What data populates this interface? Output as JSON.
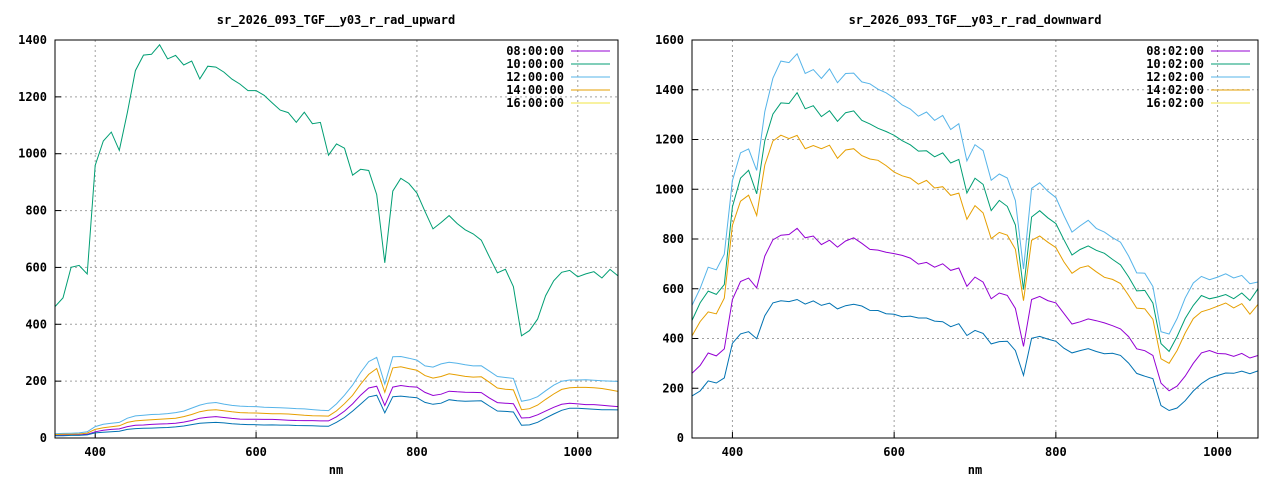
{
  "chart_data": [
    {
      "type": "line",
      "title": "sr_2026_093_TGF__y03_r_rad_upward",
      "xlabel": "nm",
      "ylabel": "",
      "xlim": [
        350,
        1050
      ],
      "ylim": [
        0,
        1400
      ],
      "xticks": [
        400,
        600,
        800,
        1000
      ],
      "yticks": [
        0,
        200,
        400,
        600,
        800,
        1000,
        1200,
        1400
      ],
      "grid": true,
      "legend_position": "top-right",
      "x_start": 350,
      "x_step": 10,
      "series": [
        {
          "name": "08:00:00",
          "color": "#9400d3",
          "legend_color": "#9400d3",
          "values": [
            10,
            10,
            11,
            11,
            13,
            22,
            27,
            30,
            32,
            40,
            45,
            46,
            48,
            49,
            50,
            52,
            56,
            62,
            70,
            73,
            75,
            72,
            69,
            67,
            66,
            66,
            65,
            65,
            64,
            63,
            62,
            61,
            61,
            60,
            60,
            75,
            95,
            120,
            150,
            175,
            182,
            115,
            180,
            185,
            180,
            178,
            160,
            150,
            155,
            165,
            162,
            160,
            160,
            160,
            142,
            125,
            122,
            120,
            70,
            72,
            82,
            95,
            108,
            118,
            122,
            120,
            118,
            118,
            115,
            112,
            110
          ]
        },
        {
          "name": "10:00:00",
          "color": "#009e73",
          "legend_color": "#009e73",
          "values": [
            460,
            490,
            600,
            610,
            580,
            960,
            1040,
            1070,
            1010,
            1150,
            1300,
            1350,
            1345,
            1375,
            1330,
            1350,
            1320,
            1330,
            1260,
            1300,
            1300,
            1290,
            1270,
            1250,
            1220,
            1215,
            1200,
            1180,
            1160,
            1150,
            1110,
            1140,
            1100,
            1110,
            1000,
            1040,
            1020,
            920,
            940,
            940,
            860,
            620,
            870,
            910,
            890,
            860,
            800,
            740,
            760,
            780,
            750,
            730,
            720,
            700,
            640,
            580,
            590,
            530,
            360,
            380,
            420,
            500,
            550,
            580,
            590,
            570,
            580,
            585,
            560,
            590,
            570
          ]
        },
        {
          "name": "12:00:00",
          "color": "#56b4e9",
          "legend_color": "#56b4e9",
          "values": [
            15,
            16,
            17,
            18,
            22,
            40,
            48,
            52,
            55,
            70,
            78,
            80,
            82,
            83,
            86,
            90,
            95,
            105,
            115,
            122,
            125,
            120,
            115,
            112,
            110,
            110,
            108,
            108,
            107,
            105,
            103,
            102,
            100,
            98,
            97,
            120,
            150,
            185,
            230,
            270,
            285,
            190,
            285,
            285,
            280,
            275,
            255,
            250,
            260,
            265,
            262,
            258,
            255,
            255,
            235,
            215,
            212,
            210,
            130,
            135,
            145,
            165,
            185,
            200,
            205,
            205,
            205,
            202,
            200,
            200,
            200
          ]
        },
        {
          "name": "14:00:00",
          "color": "#e69f00",
          "legend_color": "#e69f00",
          "values": [
            12,
            13,
            13,
            14,
            17,
            30,
            36,
            40,
            43,
            55,
            60,
            62,
            64,
            66,
            68,
            70,
            75,
            82,
            92,
            98,
            100,
            96,
            92,
            89,
            88,
            88,
            87,
            86,
            85,
            84,
            82,
            80,
            79,
            78,
            77,
            95,
            120,
            150,
            190,
            225,
            245,
            160,
            245,
            250,
            245,
            240,
            220,
            210,
            215,
            225,
            222,
            218,
            215,
            215,
            195,
            175,
            172,
            170,
            100,
            103,
            115,
            135,
            155,
            172,
            178,
            178,
            177,
            176,
            174,
            170,
            165
          ]
        },
        {
          "name": "16:00:00",
          "color": "#0072b2",
          "legend_color": "#f0e442",
          "values": [
            8,
            8,
            9,
            9,
            11,
            18,
            20,
            22,
            24,
            30,
            33,
            34,
            35,
            36,
            37,
            39,
            42,
            47,
            52,
            54,
            55,
            53,
            50,
            48,
            47,
            47,
            46,
            46,
            45,
            45,
            44,
            44,
            43,
            42,
            41,
            55,
            72,
            95,
            120,
            145,
            150,
            88,
            145,
            148,
            145,
            142,
            125,
            118,
            122,
            135,
            132,
            130,
            130,
            130,
            112,
            95,
            94,
            92,
            45,
            46,
            55,
            70,
            85,
            98,
            105,
            104,
            102,
            101,
            100,
            100,
            99
          ]
        }
      ]
    },
    {
      "type": "line",
      "title": "sr_2026_093_TGF__y03_r_rad_downward",
      "xlabel": "nm",
      "ylabel": "",
      "xlim": [
        350,
        1050
      ],
      "ylim": [
        0,
        1600
      ],
      "xticks": [
        400,
        600,
        800,
        1000
      ],
      "yticks": [
        0,
        200,
        400,
        600,
        800,
        1000,
        1200,
        1400,
        1600
      ],
      "grid": true,
      "legend_position": "top-right",
      "x_start": 350,
      "x_step": 10,
      "series": [
        {
          "name": "08:02:00",
          "color": "#9400d3",
          "legend_color": "#9400d3",
          "values": [
            260,
            290,
            340,
            330,
            360,
            560,
            630,
            640,
            600,
            730,
            800,
            820,
            820,
            840,
            800,
            810,
            780,
            800,
            770,
            790,
            800,
            780,
            760,
            760,
            750,
            740,
            730,
            720,
            700,
            710,
            690,
            700,
            670,
            680,
            610,
            650,
            630,
            560,
            580,
            570,
            520,
            370,
            560,
            570,
            550,
            540,
            500,
            460,
            470,
            480,
            470,
            460,
            450,
            440,
            410,
            360,
            350,
            330,
            220,
            190,
            210,
            250,
            300,
            340,
            350,
            340,
            340,
            330,
            340,
            320,
            330
          ]
        },
        {
          "name": "10:02:00",
          "color": "#009e73",
          "legend_color": "#009e73",
          "values": [
            470,
            540,
            590,
            580,
            620,
            930,
            1040,
            1070,
            980,
            1200,
            1310,
            1350,
            1340,
            1380,
            1320,
            1340,
            1300,
            1320,
            1270,
            1300,
            1310,
            1280,
            1270,
            1250,
            1230,
            1210,
            1190,
            1180,
            1160,
            1160,
            1130,
            1140,
            1100,
            1120,
            990,
            1050,
            1020,
            910,
            950,
            930,
            860,
            600,
            890,
            910,
            880,
            860,
            800,
            740,
            760,
            770,
            750,
            740,
            720,
            700,
            650,
            590,
            590,
            540,
            380,
            350,
            410,
            480,
            530,
            570,
            560,
            570,
            580,
            560,
            580,
            550,
            600
          ]
        },
        {
          "name": "12:02:00",
          "color": "#56b4e9",
          "legend_color": "#56b4e9",
          "values": [
            530,
            600,
            690,
            680,
            740,
            1030,
            1140,
            1160,
            1080,
            1320,
            1450,
            1510,
            1500,
            1540,
            1470,
            1490,
            1450,
            1480,
            1420,
            1460,
            1470,
            1440,
            1430,
            1400,
            1380,
            1360,
            1340,
            1330,
            1300,
            1310,
            1270,
            1290,
            1240,
            1270,
            1120,
            1180,
            1150,
            1030,
            1060,
            1050,
            960,
            680,
            1000,
            1020,
            990,
            970,
            900,
            830,
            850,
            870,
            840,
            830,
            810,
            790,
            730,
            660,
            660,
            610,
            430,
            420,
            480,
            560,
            620,
            650,
            640,
            650,
            660,
            640,
            650,
            620,
            630
          ]
        },
        {
          "name": "14:02:00",
          "color": "#e69f00",
          "legend_color": "#e69f00",
          "values": [
            410,
            470,
            510,
            500,
            560,
            850,
            950,
            980,
            900,
            1100,
            1190,
            1210,
            1200,
            1220,
            1170,
            1180,
            1160,
            1170,
            1120,
            1160,
            1170,
            1140,
            1120,
            1110,
            1090,
            1070,
            1060,
            1050,
            1020,
            1030,
            1000,
            1010,
            980,
            990,
            880,
            930,
            900,
            800,
            830,
            820,
            760,
            550,
            790,
            810,
            790,
            770,
            710,
            660,
            680,
            690,
            670,
            650,
            640,
            620,
            570,
            520,
            520,
            480,
            320,
            300,
            350,
            420,
            480,
            510,
            520,
            530,
            540,
            520,
            540,
            500,
            540
          ]
        },
        {
          "name": "16:02:00",
          "color": "#0072b2",
          "legend_color": "#f0e442",
          "values": [
            170,
            190,
            230,
            220,
            240,
            380,
            420,
            430,
            400,
            490,
            540,
            550,
            550,
            560,
            540,
            550,
            530,
            540,
            520,
            535,
            540,
            530,
            510,
            510,
            500,
            500,
            490,
            490,
            480,
            480,
            470,
            470,
            450,
            460,
            410,
            430,
            420,
            380,
            390,
            390,
            350,
            250,
            400,
            410,
            400,
            390,
            360,
            340,
            350,
            360,
            350,
            340,
            340,
            330,
            300,
            260,
            250,
            240,
            130,
            110,
            120,
            150,
            190,
            220,
            240,
            250,
            260,
            260,
            270,
            260,
            270
          ]
        }
      ]
    }
  ]
}
